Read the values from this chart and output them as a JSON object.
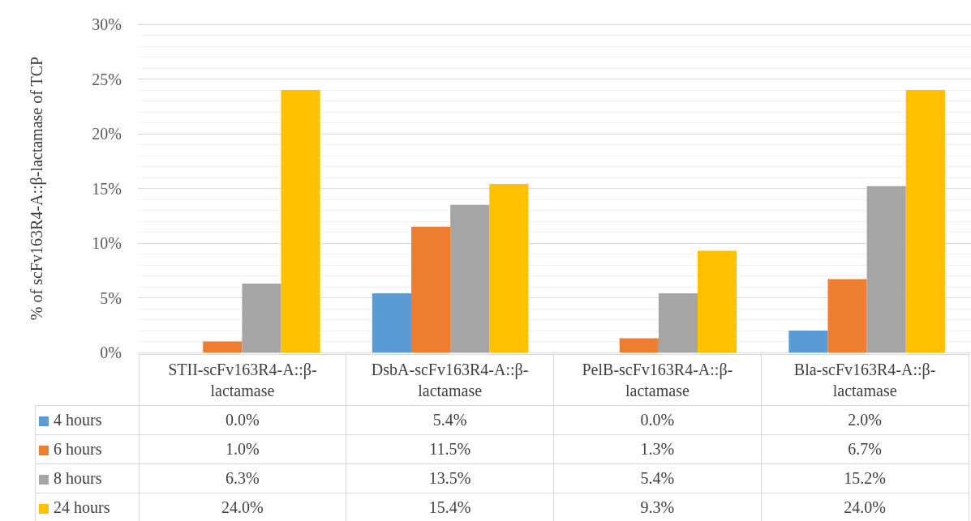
{
  "chart_data": {
    "type": "bar",
    "ylabel": "% of scFv163R4-A::β-lactamase of TCP",
    "categories": [
      "STII-scFv163R4-A::β-lactamase",
      "DsbA-scFv163R4-A::β-lactamase",
      "PelB-scFv163R4-A::β-lactamase",
      "Bla-scFv163R4-A::β-lactamase"
    ],
    "series": [
      {
        "name": "4 hours",
        "color": "#5b9bd5",
        "values": [
          0.0,
          5.4,
          0.0,
          2.0
        ],
        "value_labels": [
          "0.0%",
          "5.4%",
          "0.0%",
          "2.0%"
        ]
      },
      {
        "name": "6 hours",
        "color": "#ed7d31",
        "values": [
          1.0,
          11.5,
          1.3,
          6.7
        ],
        "value_labels": [
          "1.0%",
          "11.5%",
          "1.3%",
          "6.7%"
        ]
      },
      {
        "name": "8 hours",
        "color": "#a5a5a5",
        "values": [
          6.3,
          13.5,
          5.4,
          15.2
        ],
        "value_labels": [
          "6.3%",
          "13.5%",
          "5.4%",
          "15.2%"
        ]
      },
      {
        "name": "24 hours",
        "color": "#ffc000",
        "values": [
          24.0,
          15.4,
          9.3,
          24.0
        ],
        "value_labels": [
          "24.0%",
          "15.4%",
          "9.3%",
          "24.0%"
        ]
      }
    ],
    "ylim": [
      0,
      30
    ],
    "yticks": [
      {
        "value": 0,
        "label": "0%"
      },
      {
        "value": 5,
        "label": "5%"
      },
      {
        "value": 10,
        "label": "10%"
      },
      {
        "value": 15,
        "label": "15%"
      },
      {
        "value": 20,
        "label": "20%"
      },
      {
        "value": 25,
        "label": "25%"
      },
      {
        "value": 30,
        "label": "30%"
      }
    ],
    "grid": "y",
    "legend": "bottom"
  }
}
